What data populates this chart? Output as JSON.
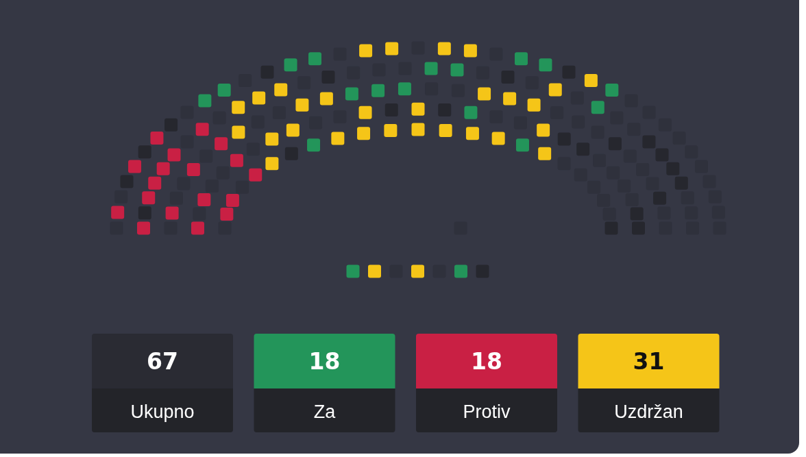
{
  "chart_data": {
    "type": "other",
    "categories": [
      "Ukupno",
      "Za",
      "Protiv",
      "Uzdržan"
    ],
    "values": [
      67,
      18,
      18,
      31
    ],
    "colors": [
      "#2a2b33",
      "#23955a",
      "#c92044",
      "#f5c518"
    ],
    "data_labels": true
  }
}
